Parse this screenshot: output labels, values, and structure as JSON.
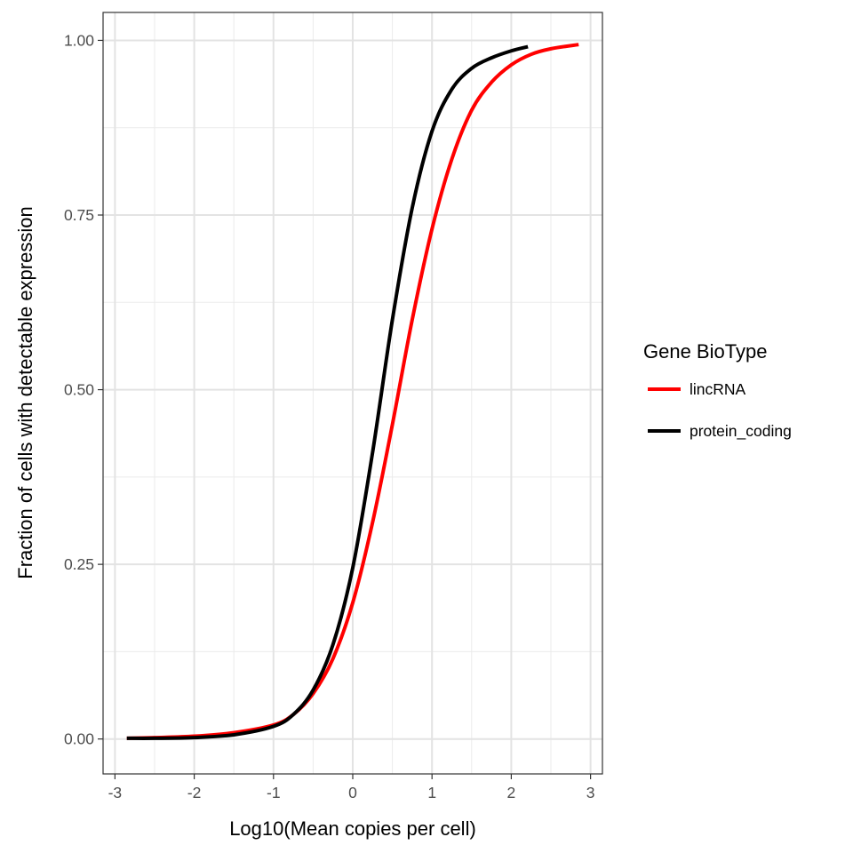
{
  "chart_data": {
    "type": "line",
    "title": "",
    "xlabel": "Log10(Mean copies per cell)",
    "ylabel": "Fraction of cells with detectable expression",
    "xlim": [
      -3.15,
      3.15
    ],
    "ylim": [
      -0.05,
      1.04
    ],
    "x_ticks": [
      -3,
      -2,
      -1,
      0,
      1,
      2,
      3
    ],
    "x_tick_labels": [
      "-3",
      "-2",
      "-1",
      "0",
      "1",
      "2",
      "3"
    ],
    "y_ticks": [
      0,
      0.25,
      0.5,
      0.75,
      1.0
    ],
    "y_tick_labels": [
      "0.00",
      "0.25",
      "0.50",
      "0.75",
      "1.00"
    ],
    "grid": true,
    "legend": {
      "title": "Gene BioType",
      "position": "right"
    },
    "series": [
      {
        "name": "lincRNA",
        "color": "#ff0000",
        "x": [
          -2.85,
          -2.5,
          -2.0,
          -1.5,
          -1.0,
          -0.75,
          -0.5,
          -0.25,
          0.0,
          0.25,
          0.5,
          0.75,
          1.0,
          1.25,
          1.5,
          1.75,
          2.0,
          2.25,
          2.5,
          2.85
        ],
        "y": [
          0.001,
          0.002,
          0.004,
          0.009,
          0.02,
          0.035,
          0.065,
          0.115,
          0.195,
          0.31,
          0.45,
          0.6,
          0.73,
          0.83,
          0.9,
          0.94,
          0.965,
          0.98,
          0.988,
          0.994
        ]
      },
      {
        "name": "protein_coding",
        "color": "#000000",
        "x": [
          -2.85,
          -2.5,
          -2.0,
          -1.5,
          -1.0,
          -0.75,
          -0.5,
          -0.25,
          0.0,
          0.25,
          0.5,
          0.75,
          1.0,
          1.25,
          1.5,
          1.75,
          2.0,
          2.21
        ],
        "y": [
          0.001,
          0.001,
          0.002,
          0.006,
          0.018,
          0.035,
          0.07,
          0.135,
          0.245,
          0.41,
          0.6,
          0.76,
          0.87,
          0.93,
          0.96,
          0.975,
          0.985,
          0.991
        ]
      }
    ]
  }
}
